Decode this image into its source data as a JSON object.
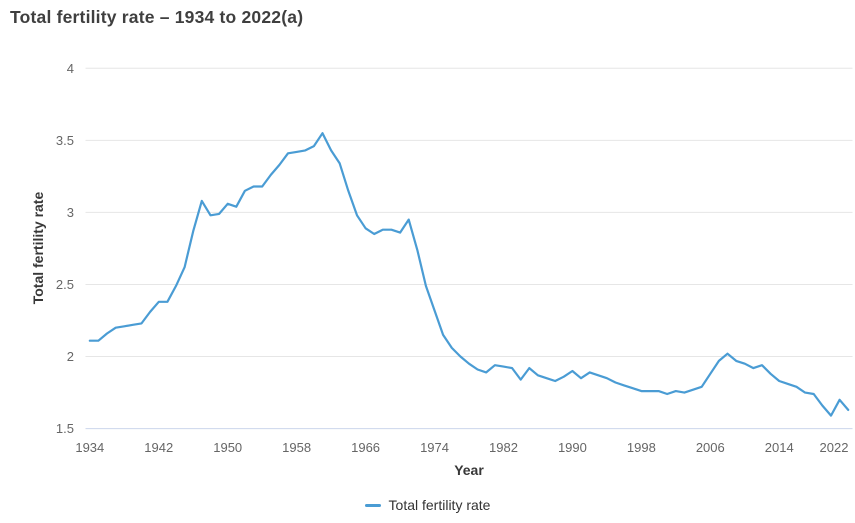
{
  "colors": {
    "series": "#4a9cd4",
    "grid": "#e6e6e6",
    "axis_line": "#ccd6eb",
    "tick_label": "#666666",
    "text_dark": "#383838"
  },
  "chart_data": {
    "type": "line",
    "title": "Total fertility rate – 1934 to 2022(a)",
    "xlabel": "Year",
    "ylabel": "Total fertility rate",
    "grid": "horizontal-only",
    "legend_position": "bottom-center",
    "xlim": [
      1933.5,
      2022.5
    ],
    "ylim": [
      1.5,
      4
    ],
    "x_ticks": [
      1934,
      1942,
      1950,
      1958,
      1966,
      1974,
      1982,
      1990,
      1998,
      2006,
      2014,
      2022
    ],
    "y_ticks": [
      1.5,
      2,
      2.5,
      3,
      3.5,
      4
    ],
    "y_tick_labels": [
      "1.5",
      "2",
      "2.5",
      "3",
      "3.5",
      "4"
    ],
    "series": [
      {
        "name": "Total fertility rate",
        "color": "#4a9cd4",
        "x": [
          1934,
          1935,
          1936,
          1937,
          1938,
          1939,
          1940,
          1941,
          1942,
          1943,
          1944,
          1945,
          1946,
          1947,
          1948,
          1949,
          1950,
          1951,
          1952,
          1953,
          1954,
          1955,
          1956,
          1957,
          1958,
          1959,
          1960,
          1961,
          1962,
          1963,
          1964,
          1965,
          1966,
          1967,
          1968,
          1969,
          1970,
          1971,
          1972,
          1973,
          1974,
          1975,
          1976,
          1977,
          1978,
          1979,
          1980,
          1981,
          1982,
          1983,
          1984,
          1985,
          1986,
          1987,
          1988,
          1989,
          1990,
          1991,
          1992,
          1993,
          1994,
          1995,
          1996,
          1997,
          1998,
          1999,
          2000,
          2001,
          2002,
          2003,
          2004,
          2005,
          2006,
          2007,
          2008,
          2009,
          2010,
          2011,
          2012,
          2013,
          2014,
          2015,
          2016,
          2017,
          2018,
          2019,
          2020,
          2021,
          2022
        ],
        "values": [
          2.11,
          2.11,
          2.16,
          2.2,
          2.21,
          2.22,
          2.23,
          2.31,
          2.38,
          2.38,
          2.49,
          2.62,
          2.87,
          3.08,
          2.98,
          2.99,
          3.06,
          3.04,
          3.15,
          3.18,
          3.18,
          3.26,
          3.33,
          3.41,
          3.42,
          3.43,
          3.46,
          3.55,
          3.43,
          3.34,
          3.15,
          2.98,
          2.89,
          2.85,
          2.88,
          2.88,
          2.86,
          2.95,
          2.74,
          2.49,
          2.32,
          2.15,
          2.06,
          2.0,
          1.95,
          1.91,
          1.89,
          1.94,
          1.93,
          1.92,
          1.84,
          1.92,
          1.87,
          1.85,
          1.83,
          1.86,
          1.9,
          1.85,
          1.89,
          1.87,
          1.85,
          1.82,
          1.8,
          1.78,
          1.76,
          1.76,
          1.76,
          1.74,
          1.76,
          1.75,
          1.77,
          1.79,
          1.88,
          1.97,
          2.02,
          1.97,
          1.95,
          1.92,
          1.94,
          1.88,
          1.83,
          1.81,
          1.79,
          1.75,
          1.74,
          1.66,
          1.59,
          1.7,
          1.63
        ]
      }
    ]
  }
}
